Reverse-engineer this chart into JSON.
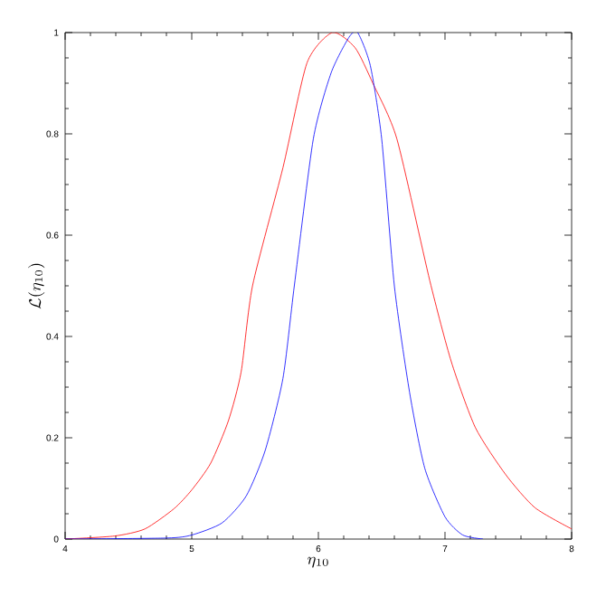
{
  "chart_data": {
    "type": "line",
    "xlabel": "\\eta_{10}",
    "ylabel": "\\mathcal{L}(\\eta_{10})",
    "xlim": [
      4,
      8
    ],
    "ylim": [
      0,
      1
    ],
    "xticks": [
      4,
      5,
      6,
      7,
      8
    ],
    "yticks": [
      0,
      0.2,
      0.4,
      0.6,
      0.8,
      1
    ],
    "grid": false,
    "marker": "none",
    "line_style": "solid",
    "series": [
      {
        "color": "#ff0000",
        "x": [
          4,
          4.39,
          4.63,
          4.86,
          5.0,
          5.15,
          5.29,
          5.39,
          5.48,
          5.72,
          5.91,
          6.11,
          6.29,
          6.43,
          6.62,
          6.88,
          7.05,
          7.24,
          7.48,
          7.71,
          8.0
        ],
        "values": [
          0,
          0.006,
          0.02,
          0.06,
          0.097,
          0.15,
          0.234,
          0.33,
          0.5,
          0.733,
          0.94,
          1.0,
          0.97,
          0.9,
          0.79,
          0.51,
          0.35,
          0.22,
          0.127,
          0.062,
          0.02
        ]
      },
      {
        "color": "#0000ff",
        "x": [
          4,
          4.8,
          5.0,
          5.24,
          5.43,
          5.58,
          5.72,
          5.81,
          5.96,
          6.1,
          6.24,
          6.31,
          6.41,
          6.5,
          6.6,
          6.72,
          6.84,
          7.0,
          7.14,
          7.3
        ],
        "values": [
          0,
          0.002,
          0.008,
          0.032,
          0.085,
          0.175,
          0.317,
          0.5,
          0.79,
          0.92,
          0.99,
          1.0,
          0.935,
          0.79,
          0.5,
          0.29,
          0.14,
          0.044,
          0.008,
          0
        ]
      }
    ]
  }
}
